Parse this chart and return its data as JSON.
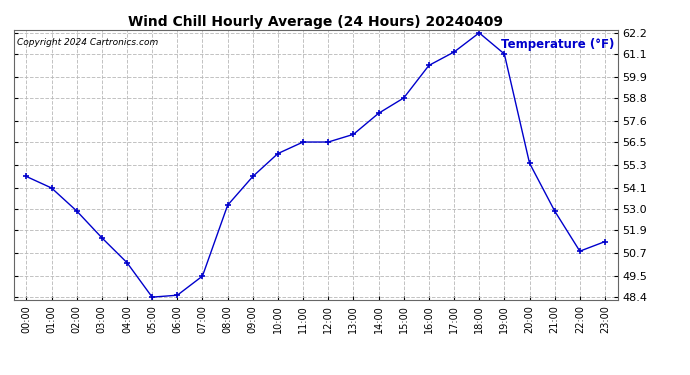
{
  "title": "Wind Chill Hourly Average (24 Hours) 20240409",
  "ylabel": "Temperature (°F)",
  "copyright": "Copyright 2024 Cartronics.com",
  "hours": [
    "00:00",
    "01:00",
    "02:00",
    "03:00",
    "04:00",
    "05:00",
    "06:00",
    "07:00",
    "08:00",
    "09:00",
    "10:00",
    "11:00",
    "12:00",
    "13:00",
    "14:00",
    "15:00",
    "16:00",
    "17:00",
    "18:00",
    "19:00",
    "20:00",
    "21:00",
    "22:00",
    "23:00"
  ],
  "values": [
    54.7,
    54.1,
    52.9,
    51.5,
    50.2,
    48.4,
    48.5,
    49.5,
    53.2,
    54.7,
    55.9,
    56.5,
    56.5,
    56.9,
    58.0,
    58.8,
    60.5,
    61.2,
    62.2,
    61.1,
    55.4,
    52.9,
    50.8,
    51.3
  ],
  "line_color": "#0000cc",
  "marker_color": "#0000cc",
  "bg_color": "#ffffff",
  "grid_color": "#bbbbbb",
  "title_color": "#000000",
  "ylabel_color": "#0000cc",
  "copyright_color": "#000000",
  "ylim_min": 48.4,
  "ylim_max": 62.2,
  "yticks": [
    48.4,
    49.5,
    50.7,
    51.9,
    53.0,
    54.1,
    55.3,
    56.5,
    57.6,
    58.8,
    59.9,
    61.1,
    62.2
  ]
}
